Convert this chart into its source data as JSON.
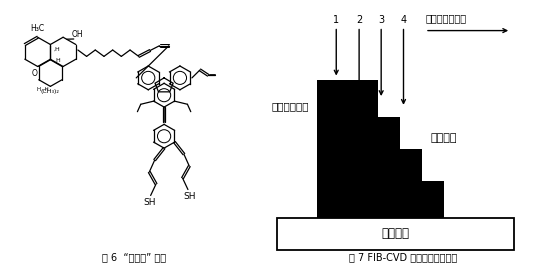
{
  "bg_color": "#ffffff",
  "fig_bg": "#ffffff",
  "left_caption": "图 6  “燔皮士” 分子",
  "right_caption": "图 7 FIB-CVD 制备三维纳米结构",
  "right_arrow_label": "离子束扫描方向",
  "right_beam_label": "聚焦镜离子束",
  "right_deposit_label": "沉积结构",
  "right_substrate_label": "基体材料",
  "step_numbers": [
    "1",
    "2",
    "3",
    "4"
  ],
  "black_color": "#000000",
  "white_color": "#ffffff"
}
